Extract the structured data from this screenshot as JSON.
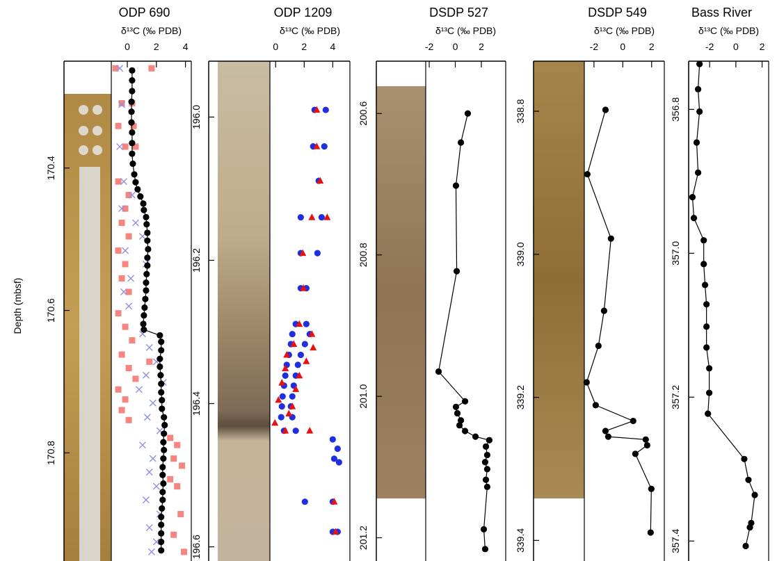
{
  "chart_data": [
    {
      "type": "scatter",
      "title": "ODP 690",
      "xlabel": "δ¹³C (‰ PDB)",
      "ylabel": "Depth (mbsf)",
      "xlim": [
        -1.1,
        4.4
      ],
      "xticks": [
        0,
        2,
        4
      ],
      "ylim": [
        170.25,
        170.945
      ],
      "yreverse": true,
      "yticks": [
        170.4,
        170.6,
        170.8
      ],
      "series": [
        {
          "marker": "square",
          "color": "#f4857f",
          "x": [
            -0.81,
            1.67,
            -0.38,
            0.33,
            -0.62,
            0.43,
            -0.14,
            0.57,
            -0.62,
            0.1,
            -0.14,
            -0.38,
            0.1,
            -0.62,
            -0.14,
            -0.38,
            0.1,
            -0.62,
            -0.14,
            0.33,
            -0.38,
            0.1,
            0.57,
            -0.62,
            -0.14,
            -0.38,
            0.1,
            1.52,
            2.95,
            3.43,
            3.19,
            3.76,
            2.95,
            3.43,
            3.67,
            3.19,
            3.9
          ],
          "y": [
            170.26,
            170.26,
            170.309,
            170.309,
            170.341,
            170.341,
            170.37,
            170.37,
            170.419,
            170.438,
            170.457,
            170.477,
            170.496,
            170.516,
            170.535,
            170.555,
            170.574,
            170.604,
            170.623,
            170.642,
            170.662,
            170.681,
            170.696,
            170.711,
            170.725,
            170.74,
            170.754,
            170.672,
            170.779,
            170.789,
            170.808,
            170.818,
            170.837,
            170.847,
            170.886,
            170.915,
            170.939
          ]
        },
        {
          "marker": "x",
          "color": "#8f8fe8",
          "x": [
            -0.52,
            -0.38,
            -0.52,
            -0.24,
            0.33,
            -0.38,
            0.57,
            1.05,
            -0.14,
            1.29,
            0.24,
            -0.24,
            0.1,
            1.05,
            1.52,
            2.0,
            1.29,
            2.48,
            0.81,
            1.76,
            1.38,
            2.24,
            1.05,
            1.76,
            1.52,
            2.0,
            1.29,
            2.24,
            1.52,
            2.0,
            1.67
          ],
          "y": [
            170.26,
            170.311,
            170.37,
            170.419,
            170.438,
            170.457,
            170.477,
            170.496,
            170.516,
            170.535,
            170.555,
            170.574,
            170.594,
            170.633,
            170.652,
            170.672,
            170.691,
            170.701,
            170.711,
            170.73,
            170.75,
            170.769,
            170.789,
            170.808,
            170.827,
            170.847,
            170.866,
            170.886,
            170.905,
            170.925,
            170.939
          ]
        },
        {
          "marker": "circle",
          "color": "#000000",
          "line": true,
          "x": [
            0.33,
            0.33,
            0.33,
            0.29,
            0.29,
            0.29,
            0.33,
            0.33,
            0.33,
            0.38,
            0.48,
            0.57,
            0.71,
            0.9,
            1.1,
            1.14,
            1.29,
            1.33,
            1.38,
            1.38,
            1.43,
            1.38,
            1.38,
            1.33,
            1.29,
            1.29,
            1.24,
            1.19,
            1.14,
            1.1,
            1.14,
            2.24,
            2.33,
            2.33,
            2.24,
            2.24,
            2.29,
            2.33,
            2.33,
            2.38,
            2.38,
            2.52,
            2.57,
            2.52,
            2.48,
            2.52,
            2.48,
            2.43,
            2.43,
            2.48,
            2.43,
            2.43,
            2.38,
            2.33,
            2.33,
            2.33,
            2.33,
            2.33
          ],
          "y": [
            170.263,
            170.277,
            170.292,
            170.307,
            170.321,
            170.336,
            170.35,
            170.365,
            170.38,
            170.394,
            170.409,
            170.42,
            170.43,
            170.44,
            170.45,
            170.459,
            170.469,
            170.479,
            170.491,
            170.502,
            170.514,
            170.526,
            170.537,
            170.549,
            170.561,
            170.572,
            170.584,
            170.596,
            170.607,
            170.619,
            170.627,
            170.635,
            170.644,
            170.656,
            170.668,
            170.679,
            170.691,
            170.703,
            170.715,
            170.726,
            170.738,
            170.75,
            170.761,
            170.773,
            170.785,
            170.796,
            170.808,
            170.82,
            170.831,
            170.843,
            170.855,
            170.866,
            170.878,
            170.89,
            170.901,
            170.913,
            170.925,
            170.937
          ]
        }
      ]
    },
    {
      "type": "scatter",
      "title": "ODP 1209",
      "xlabel": "δ¹³C (‰ PDB)",
      "xlim": [
        -0.4,
        5.2
      ],
      "xticks": [
        0,
        2,
        4
      ],
      "ylim": [
        195.922,
        196.613
      ],
      "yreverse": true,
      "yticks": [
        {
          "value": 196,
          "label": "196.0"
        },
        196.2,
        196.4,
        196.6
      ],
      "series": [
        {
          "marker": "circle",
          "color": "#1f2fe0",
          "x": [
            2.73,
            3.51,
            2.63,
            3.41,
            3.02,
            1.76,
            3.22,
            1.76,
            2.93,
            1.76,
            2.15,
            1.41,
            2.15,
            1.17,
            2.39,
            1.07,
            2.05,
            0.93,
            1.76,
            0.78,
            1.56,
            0.68,
            1.41,
            0.59,
            1.27,
            0.49,
            1.17,
            0.44,
            1.07,
            0.39,
            1.17,
            0.59,
            1.41,
            4.0,
            4.34,
            4.1,
            4.44,
            2.05,
            4.0,
            4.0,
            4.34
          ],
          "y": [
            195.99,
            195.99,
            196.041,
            196.041,
            196.089,
            196.14,
            196.14,
            196.19,
            196.19,
            196.239,
            196.239,
            196.289,
            196.289,
            196.303,
            196.303,
            196.317,
            196.317,
            196.332,
            196.332,
            196.346,
            196.346,
            196.361,
            196.361,
            196.375,
            196.375,
            196.39,
            196.39,
            196.404,
            196.404,
            196.419,
            196.419,
            196.438,
            196.438,
            196.45,
            196.463,
            196.477,
            196.482,
            196.537,
            196.537,
            196.579,
            196.579
          ]
        },
        {
          "marker": "triangle",
          "color": "#e81010",
          "x": [
            2.88,
            2.88,
            3.12,
            2.54,
            1.9,
            3.61,
            1.95,
            1.66,
            2.54,
            1.27,
            2.63,
            0.78,
            2.15,
            0.68,
            1.66,
            0.44,
            1.41,
            0.2,
            1.17,
            -0.05,
            0.93,
            0.68,
            2.39,
            4.1,
            4.2
          ],
          "y": [
            195.99,
            196.041,
            196.089,
            196.14,
            196.19,
            196.14,
            196.239,
            196.289,
            196.303,
            196.317,
            196.322,
            196.332,
            196.341,
            196.351,
            196.361,
            196.371,
            196.38,
            196.395,
            196.404,
            196.427,
            196.414,
            196.438,
            196.438,
            196.537,
            196.579
          ]
        }
      ]
    },
    {
      "type": "line",
      "title": "DSDP 527",
      "xlabel": "δ¹³C (‰ PDB)",
      "xlim": [
        -2.27,
        3.87
      ],
      "xticks": [
        -2,
        0,
        2
      ],
      "ylim": [
        200.526,
        201.226
      ],
      "yreverse": true,
      "yticks": [
        200.6,
        200.8,
        {
          "value": 201,
          "label": "201.0"
        },
        201.2
      ],
      "series": [
        {
          "marker": "circle",
          "color": "#000000",
          "line": true,
          "x": [
            0.96,
            0.43,
            0.05,
            0.11,
            -1.28,
            0.75,
            0.05,
            0.16,
            0.43,
            0.32,
            0.75,
            1.55,
            2.61,
            2.35,
            2.45,
            2.29,
            2.45,
            2.35,
            2.45,
            2.19,
            2.29
          ],
          "y": [
            200.6,
            200.641,
            200.702,
            200.823,
            200.965,
            201.007,
            201.015,
            201.024,
            201.034,
            201.041,
            201.049,
            201.057,
            201.062,
            201.071,
            201.083,
            201.093,
            201.103,
            201.118,
            201.128,
            201.188,
            201.216
          ]
        }
      ]
    },
    {
      "type": "line",
      "title": "DSDP 549",
      "xlabel": "δ¹³C (‰ PDB)",
      "xlim": [
        -2.67,
        2.88
      ],
      "xticks": [
        -2,
        0,
        2
      ],
      "ylim": [
        338.73,
        339.422
      ],
      "yreverse": true,
      "yticks": [
        338.8,
        {
          "value": 339,
          "label": "339.0"
        },
        339.2,
        339.4
      ],
      "series": [
        {
          "marker": "circle",
          "color": "#000000",
          "line": true,
          "x": [
            -1.2,
            -2.46,
            -0.82,
            -1.3,
            -1.69,
            -2.51,
            -1.88,
            0.72,
            -1.2,
            -1.01,
            1.59,
            1.69,
            0.87,
            1.98,
            1.93
          ],
          "y": [
            338.798,
            338.888,
            338.978,
            339.079,
            339.128,
            339.179,
            339.211,
            339.233,
            339.247,
            339.255,
            339.259,
            339.267,
            339.279,
            339.328,
            339.389
          ]
        }
      ]
    },
    {
      "type": "line",
      "title": "Bass River",
      "xlabel": "δ¹³C (‰ PDB)",
      "xlim": [
        -3.6,
        2.5
      ],
      "xticks": [
        -2,
        0,
        2
      ],
      "ylim": [
        356.733,
        357.421
      ],
      "yreverse": true,
      "yticks": [
        356.8,
        {
          "value": 357,
          "label": "357.0"
        },
        357.2,
        357.4
      ],
      "series": [
        {
          "marker": "circle",
          "color": "#000000",
          "line": true,
          "x": [
            -2.77,
            -2.88,
            -2.77,
            -2.99,
            -2.88,
            -3.31,
            -3.2,
            -2.45,
            -2.45,
            -2.35,
            -2.24,
            -2.24,
            -2.24,
            -2.03,
            -2.03,
            -2.13,
            0.64,
            0.96,
            1.44,
            1.17,
            1.07,
            0.75
          ],
          "y": [
            356.737,
            356.772,
            356.803,
            356.846,
            356.888,
            356.922,
            356.951,
            356.982,
            357.015,
            357.044,
            357.071,
            357.102,
            357.131,
            357.16,
            357.194,
            357.223,
            357.286,
            357.315,
            357.336,
            357.375,
            357.381,
            357.407
          ]
        }
      ]
    }
  ]
}
